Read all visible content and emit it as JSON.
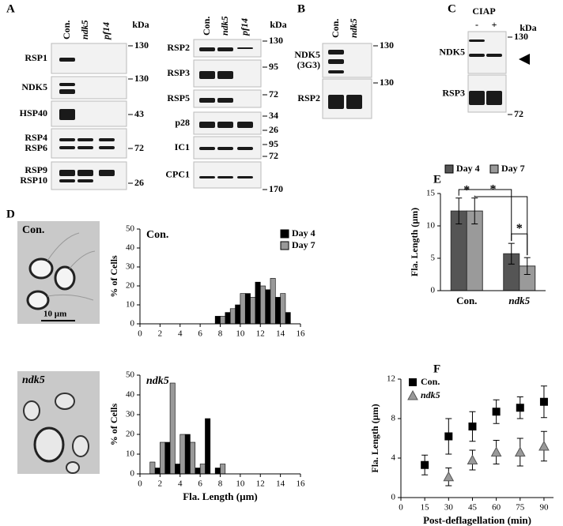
{
  "panel_labels": [
    "A",
    "B",
    "C",
    "D",
    "E",
    "F"
  ],
  "blots": {
    "A_left": {
      "columns": [
        "Con.",
        "ndk5",
        "pf14"
      ],
      "unit": "kDa",
      "rows": [
        {
          "labels": [
            "RSP1"
          ],
          "markers": [
            130
          ]
        },
        {
          "labels": [
            "NDK5"
          ],
          "markers": [
            130
          ]
        },
        {
          "labels": [
            "HSP40"
          ],
          "markers": [
            43
          ]
        },
        {
          "labels": [
            "RSP4",
            "RSP6"
          ],
          "markers": [
            72
          ]
        },
        {
          "labels": [
            "RSP9",
            "RSP10"
          ],
          "markers": [
            26
          ]
        }
      ]
    },
    "A_right": {
      "columns": [
        "Con.",
        "ndk5",
        "pf14"
      ],
      "unit": "kDa",
      "rows": [
        {
          "labels": [
            "RSP2"
          ],
          "markers": [
            130
          ]
        },
        {
          "labels": [
            "RSP3"
          ],
          "markers": [
            95
          ]
        },
        {
          "labels": [
            "RSP5"
          ],
          "markers": [
            72
          ]
        },
        {
          "labels": [
            "p28"
          ],
          "markers": [
            34,
            26
          ]
        },
        {
          "labels": [
            "IC1"
          ],
          "markers": [
            95,
            72
          ]
        },
        {
          "labels": [
            "CPC1"
          ],
          "markers": [
            170
          ]
        }
      ]
    },
    "B": {
      "columns": [
        "Con.",
        "ndk5"
      ],
      "rows": [
        {
          "labels": [
            "NDK5",
            "(3G3)"
          ],
          "markers": [
            130
          ]
        },
        {
          "labels": [
            "RSP2"
          ],
          "markers": [
            130
          ]
        }
      ]
    },
    "C": {
      "treatment": "CIAP",
      "columns": [
        "-",
        "+"
      ],
      "unit": "kDa",
      "rows": [
        {
          "labels": [
            "NDK5"
          ],
          "markers": [
            130
          ]
        },
        {
          "labels": [
            "RSP3"
          ],
          "markers": [
            72
          ]
        }
      ]
    }
  },
  "micrographs": [
    {
      "label": "Con.",
      "scale": "10 µm"
    },
    {
      "label": "ndk5"
    }
  ],
  "chart_data": [
    {
      "type": "histogram",
      "title": "Con.",
      "ylabel": "% of Cells",
      "bins": [
        7.5,
        8.5,
        9.5,
        10.5,
        11.5,
        12.5,
        13.5,
        14.5,
        15.5
      ],
      "series": [
        {
          "name": "Day 4",
          "color": "#000000",
          "values": [
            4,
            6,
            10,
            16,
            22,
            18,
            14,
            6
          ]
        },
        {
          "name": "Day 7",
          "color": "#999999",
          "values": [
            4,
            8,
            16,
            14,
            20,
            24,
            16,
            0
          ]
        }
      ],
      "xlim": [
        0,
        16
      ],
      "xticks": [
        0,
        2,
        4,
        6,
        8,
        10,
        12,
        14,
        16
      ],
      "ylim": [
        0,
        50
      ],
      "yticks": [
        0,
        10,
        20,
        30,
        40,
        50
      ]
    },
    {
      "type": "histogram",
      "title": "ndk5",
      "ylabel": "% of Cells",
      "xlabel": "Fla. Length (µm)",
      "bins": [
        0.5,
        1.5,
        2.5,
        3.5,
        4.5,
        5.5,
        6.5,
        7.5,
        8.5
      ],
      "series": [
        {
          "color": "#000000",
          "values": [
            0,
            3,
            16,
            5,
            20,
            3,
            28,
            3
          ]
        },
        {
          "color": "#999999",
          "values": [
            6,
            16,
            46,
            20,
            16,
            5,
            0,
            5
          ]
        }
      ],
      "xlim": [
        0,
        16
      ],
      "xticks": [
        0,
        2,
        4,
        6,
        8,
        10,
        12,
        14,
        16
      ],
      "ylim": [
        0,
        50
      ],
      "yticks": [
        0,
        10,
        20,
        30,
        40,
        50
      ]
    },
    {
      "type": "bar",
      "ylabel": "Fla. Length (µm)",
      "categories": [
        "Con.",
        "ndk5"
      ],
      "series": [
        {
          "name": "Day 4",
          "color": "#555555",
          "values": [
            12.3,
            5.7
          ],
          "errors": [
            2.0,
            1.6
          ]
        },
        {
          "name": "Day 7",
          "color": "#9a9a9a",
          "values": [
            12.3,
            3.8
          ],
          "errors": [
            2.0,
            1.3
          ]
        }
      ],
      "ylim": [
        0,
        15
      ],
      "yticks": [
        0,
        5,
        10,
        15
      ],
      "annotations": [
        "*",
        "*",
        "*"
      ]
    },
    {
      "type": "scatter",
      "ylabel": "Fla. Length (µm)",
      "xlabel": "Post-deflagellation (min)",
      "x": [
        15,
        30,
        45,
        60,
        75,
        90
      ],
      "series": [
        {
          "name": "Con.",
          "color": "#000000",
          "marker": "square",
          "values": [
            3.3,
            6.2,
            7.2,
            8.7,
            9.1,
            9.7
          ],
          "errors": [
            1.0,
            1.8,
            1.5,
            1.2,
            1.1,
            1.6
          ]
        },
        {
          "name": "ndk5",
          "color": "#999999",
          "marker": "triangle",
          "values": [
            null,
            2.1,
            3.8,
            4.6,
            4.6,
            5.2
          ],
          "errors": [
            null,
            0.9,
            1.0,
            1.2,
            1.4,
            1.5
          ]
        }
      ],
      "xlim": [
        0,
        96
      ],
      "xticks": [
        0,
        15,
        30,
        45,
        60,
        75,
        90
      ],
      "ylim": [
        0,
        12
      ],
      "yticks": [
        0,
        4,
        8,
        12
      ]
    }
  ]
}
